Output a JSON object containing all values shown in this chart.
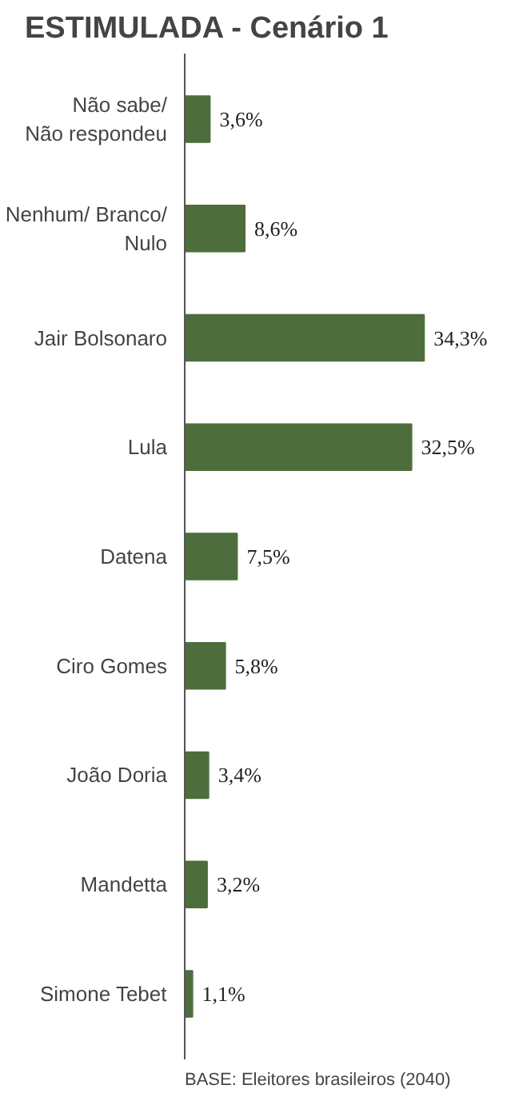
{
  "chart_data": {
    "type": "bar",
    "orientation": "horizontal",
    "title": "ESTIMULADA - Cenário 1",
    "categories": [
      "Não sabe/\nNão respondeu",
      "Nenhum/ Branco/\nNulo",
      "Jair Bolsonaro",
      "Lula",
      "Datena",
      "Ciro Gomes",
      "João Doria",
      "Mandetta",
      "Simone Tebet"
    ],
    "values": [
      3.6,
      8.6,
      34.3,
      32.5,
      7.5,
      5.8,
      3.4,
      3.2,
      1.1
    ],
    "value_labels": [
      "3,6%",
      "8,6%",
      "34,3%",
      "32,5%",
      "7,5%",
      "5,8%",
      "3,4%",
      "3,2%",
      "1,1%"
    ],
    "color": "#4d6e3c",
    "annotations": [
      "BASE: Eleitores brasileiros (2040)"
    ]
  }
}
